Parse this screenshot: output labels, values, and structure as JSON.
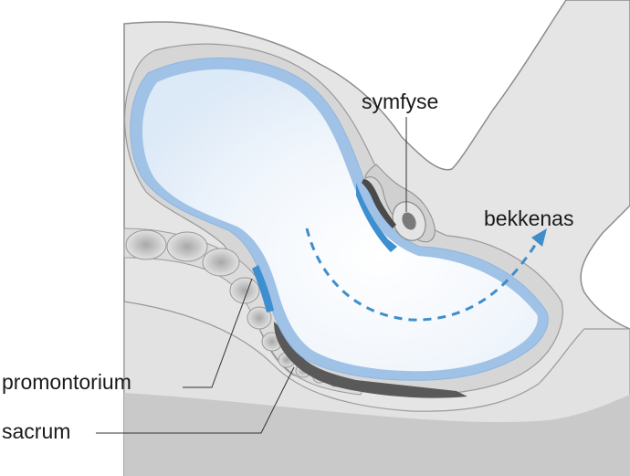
{
  "labels": {
    "symphysis": "symfyse",
    "pelvic_axis": "bekkenas",
    "promontory": "promontorium",
    "sacrum": "sacrum"
  },
  "colors": {
    "tissue_light": "#e6e6e6",
    "tissue_mid": "#d5d5d5",
    "tissue_dark": "#c8c8c8",
    "outline": "#8c8c8c",
    "canal_fill": "#eaf2fb",
    "canal_edge": "#a9c7e8",
    "canal_accent": "#3d8fd0",
    "axis_arrow": "#3f8ec9",
    "bone_dark": "#555555",
    "leader": "#333333"
  }
}
